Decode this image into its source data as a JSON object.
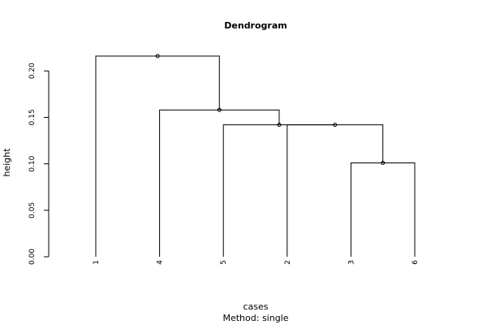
{
  "chart_data": {
    "type": "dendrogram",
    "title": "Dendrogram",
    "ylabel": "height",
    "xlabel": "cases",
    "subtitle": "Method:  single",
    "categories": [
      "1",
      "4",
      "5",
      "2",
      "3",
      "6"
    ],
    "merges": [
      {
        "left": "3",
        "right": "6",
        "height": 0.101
      },
      {
        "left": "2",
        "right": 0,
        "height": 0.142
      },
      {
        "left": "5",
        "right": 1,
        "height": 0.142
      },
      {
        "left": "4",
        "right": 2,
        "height": 0.158
      },
      {
        "left": "1",
        "right": 3,
        "height": 0.216
      }
    ],
    "ylim": [
      0,
      0.216
    ],
    "yticks": [
      {
        "value": 0,
        "label": "0.00"
      },
      {
        "value": 0.05,
        "label": "0.05"
      },
      {
        "value": 0.1,
        "label": "0.10"
      },
      {
        "value": 0.15,
        "label": "0.15"
      },
      {
        "value": 0.2,
        "label": "0.20"
      }
    ],
    "color": "#000000"
  }
}
